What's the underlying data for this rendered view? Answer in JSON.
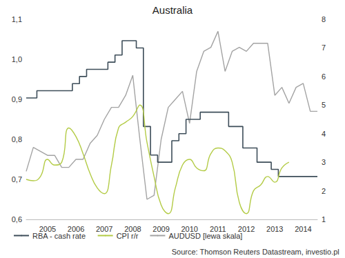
{
  "chart_data": {
    "type": "line",
    "title": "Australia",
    "annotations": [
      "Source: Thomson Reuters Datastream, investio.pl"
    ],
    "categories": [
      null,
      null,
      null,
      "2005",
      null,
      null,
      null,
      "2006",
      null,
      null,
      null,
      "2007",
      null,
      null,
      null,
      "2008",
      null,
      null,
      null,
      "2009",
      null,
      null,
      null,
      "2010",
      null,
      null,
      null,
      "2011",
      null,
      null,
      null,
      "2012",
      null,
      null,
      null,
      "2013",
      null,
      null,
      null,
      "2014",
      null,
      null
    ],
    "series": [
      {
        "name": "RBA - cash rate",
        "color": "#3d4d59",
        "axis": "y2",
        "line_style": "step",
        "values": [
          5.25,
          5.25,
          5.5,
          5.5,
          5.5,
          5.5,
          5.5,
          5.75,
          6.0,
          6.25,
          6.25,
          6.25,
          6.5,
          6.75,
          7.25,
          7.25,
          7.0,
          4.25,
          3.25,
          3.0,
          3.0,
          3.75,
          4.0,
          4.5,
          4.5,
          4.75,
          4.75,
          4.75,
          4.75,
          4.25,
          4.25,
          3.5,
          3.5,
          3.0,
          3.0,
          2.75,
          2.5,
          2.5,
          2.5,
          2.5,
          2.5,
          2.5
        ]
      },
      {
        "name": "CPI r/r",
        "color": "#b3cb45",
        "axis": "y2",
        "line_style": "smooth",
        "values": [
          2.4,
          2.35,
          2.5,
          3.1,
          2.9,
          3.0,
          4.2,
          3.9,
          3.3,
          2.6,
          2.1,
          1.9,
          2.9,
          4.2,
          4.4,
          4.6,
          5.0,
          3.7,
          2.5,
          1.5,
          1.2,
          2.1,
          2.9,
          3.1,
          2.8,
          2.7,
          3.3,
          3.5,
          3.4,
          3.0,
          1.6,
          1.2,
          2.0,
          2.2,
          2.5,
          2.3,
          2.8,
          3.0,
          null,
          null,
          null,
          null
        ]
      },
      {
        "name": "AUDUSD [lewa skala]",
        "color": "#a3a3a3",
        "axis": "y",
        "line_style": "solid",
        "values": [
          0.72,
          0.78,
          0.77,
          0.76,
          0.76,
          0.73,
          0.73,
          0.75,
          0.75,
          0.79,
          0.81,
          0.85,
          0.88,
          0.88,
          0.91,
          0.96,
          0.8,
          0.65,
          0.66,
          0.8,
          0.88,
          0.9,
          0.92,
          0.84,
          0.97,
          1.02,
          1.03,
          1.07,
          0.97,
          1.02,
          1.03,
          1.02,
          1.04,
          1.04,
          1.04,
          0.91,
          0.93,
          0.89,
          0.93,
          0.94,
          0.87,
          0.87
        ]
      }
    ],
    "ylim": [
      0.6,
      1.1
    ],
    "yticks": [
      {
        "value": 0.6,
        "label": "0,6"
      },
      {
        "value": 0.7,
        "label": "0,7"
      },
      {
        "value": 0.8,
        "label": "0,8"
      },
      {
        "value": 0.9,
        "label": "0,9"
      },
      {
        "value": 1.0,
        "label": "1,0"
      },
      {
        "value": 1.1,
        "label": "1,1"
      }
    ],
    "y2lim": [
      1,
      8
    ],
    "y2ticks": [
      1,
      2,
      3,
      4,
      5,
      6,
      7,
      8
    ],
    "grid": false,
    "legend": "bottom-left"
  }
}
